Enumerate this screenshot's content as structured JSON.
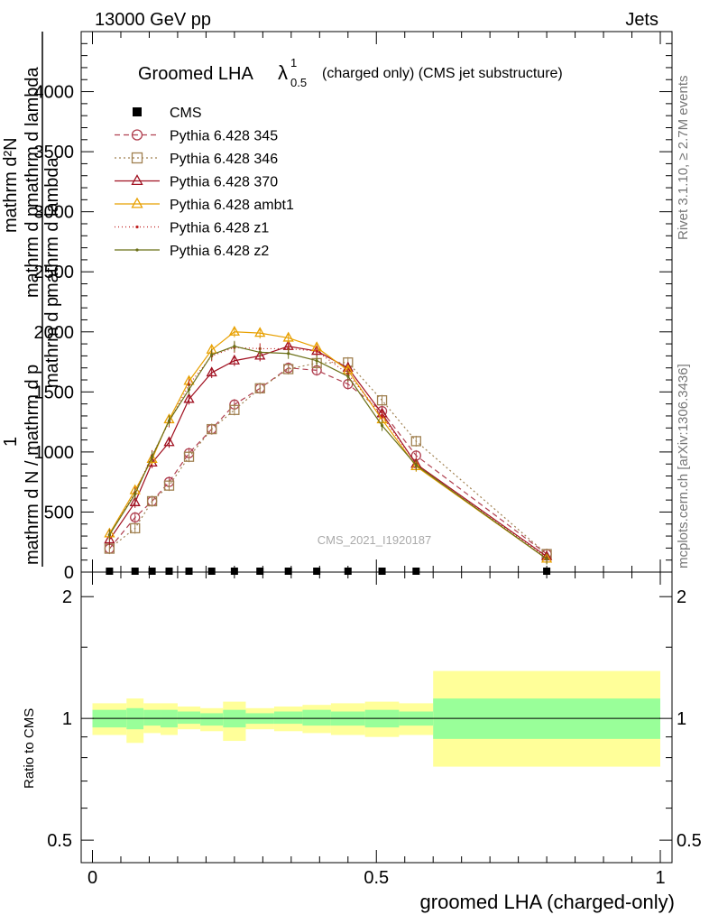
{
  "header": {
    "energy": "13000 GeV pp",
    "process": "Jets",
    "title_main": "Groomed LHA",
    "title_lambda": "λ",
    "title_super": "1",
    "title_sub": "0.5",
    "title_rest": "(charged only) (CMS jet substructure)",
    "side_top": "Rivet 3.1.10, ≥ 2.7M events",
    "side_bottom": "mcplots.cern.ch [arXiv:1306.3436]",
    "watermark": "CMS_2021_I1920187"
  },
  "upper_ylabel_lines": [
    "mathrm d²N",
    "mathrm d p_T mathrm d lambda",
    "1",
    "mathrm d N / mathrm d p_T mathrm d lambda"
  ],
  "upper_ylabel": {
    "num1": "mathrm d²N",
    "num2": "mathrm d p",
    "num3": "mathrm d lambda",
    "one": "1",
    "den": "mathrm d N / mathrm d p",
    "den2": "mathrm d p",
    "den3": "mathrm d lambda"
  },
  "lower_ylabel": "Ratio to CMS",
  "xlabel": "groomed LHA (charged-only)",
  "colors": {
    "cms": "#000000",
    "p345": "#b04050",
    "p346": "#a08050",
    "p370": "#a01020",
    "ambt1": "#e8a000",
    "z1": "#c02020",
    "z2": "#6b7018",
    "band_inner": "#99ff99",
    "band_outer": "#ffff99"
  },
  "chart_data": [
    {
      "type": "line",
      "panel": "main",
      "xlim": [
        -0.04,
        1.02
      ],
      "ylim": [
        0,
        4500
      ],
      "yticks": [
        0,
        500,
        1000,
        1500,
        2000,
        2500,
        3000,
        3500,
        4000
      ],
      "ytick_labels": [
        "0",
        "500",
        "1000",
        "1500",
        "2000",
        "2500",
        "3000",
        "3500",
        "4000"
      ],
      "x": [
        0.03,
        0.075,
        0.105,
        0.135,
        0.17,
        0.21,
        0.25,
        0.295,
        0.345,
        0.395,
        0.45,
        0.51,
        0.57,
        0.8
      ],
      "series": [
        {
          "name": "CMS",
          "style": "square",
          "values": [
            0,
            0,
            0,
            0,
            0,
            0,
            0,
            0,
            0,
            0,
            0,
            0,
            0,
            0
          ]
        },
        {
          "name": "Pythia 6.428 345",
          "style": "circle-dashed",
          "values": [
            195,
            455,
            590,
            750,
            990,
            1190,
            1395,
            1530,
            1700,
            1680,
            1565,
            1340,
            970,
            150
          ]
        },
        {
          "name": "Pythia 6.428 346",
          "style": "square-dotted",
          "values": [
            195,
            365,
            590,
            720,
            960,
            1190,
            1350,
            1530,
            1690,
            1740,
            1745,
            1430,
            1090,
            150
          ]
        },
        {
          "name": "Pythia 6.428 370",
          "style": "triangle-solid",
          "values": [
            270,
            580,
            910,
            1080,
            1440,
            1660,
            1760,
            1800,
            1880,
            1840,
            1700,
            1320,
            900,
            130
          ]
        },
        {
          "name": "Pythia 6.428 ambt1",
          "style": "triangle-solid",
          "values": [
            320,
            680,
            940,
            1270,
            1590,
            1850,
            2000,
            1990,
            1950,
            1870,
            1680,
            1270,
            880,
            110
          ]
        },
        {
          "name": "Pythia 6.428 z1",
          "style": "dot-dotted",
          "values": [
            310,
            660,
            970,
            1250,
            1560,
            1800,
            1870,
            1860,
            1860,
            1840,
            1650,
            1300,
            900,
            120
          ]
        },
        {
          "name": "Pythia 6.428 z2",
          "style": "dot-solid",
          "values": [
            310,
            650,
            960,
            1260,
            1520,
            1810,
            1880,
            1830,
            1820,
            1760,
            1630,
            1220,
            890,
            110
          ]
        }
      ]
    },
    {
      "type": "area",
      "panel": "ratio",
      "ylabel": "Ratio to CMS",
      "ylim": [
        0.44,
        2.3
      ],
      "log_y": true,
      "yticks": [
        0.5,
        1,
        2
      ],
      "ytick_labels": [
        "0.5",
        "1",
        "2"
      ],
      "xticks": [
        0,
        0.5,
        1
      ],
      "xtick_labels": [
        "0",
        "0.5",
        "1"
      ],
      "bins": [
        {
          "x": [
            0.0,
            0.06
          ],
          "inner": [
            0.95,
            1.05
          ],
          "outer": [
            0.91,
            1.09
          ]
        },
        {
          "x": [
            0.06,
            0.09
          ],
          "inner": [
            0.94,
            1.06
          ],
          "outer": [
            0.87,
            1.12
          ]
        },
        {
          "x": [
            0.09,
            0.12
          ],
          "inner": [
            0.96,
            1.05
          ],
          "outer": [
            0.92,
            1.09
          ]
        },
        {
          "x": [
            0.12,
            0.15
          ],
          "inner": [
            0.95,
            1.05
          ],
          "outer": [
            0.91,
            1.09
          ]
        },
        {
          "x": [
            0.15,
            0.19
          ],
          "inner": [
            0.97,
            1.04
          ],
          "outer": [
            0.94,
            1.07
          ]
        },
        {
          "x": [
            0.19,
            0.23
          ],
          "inner": [
            0.96,
            1.03
          ],
          "outer": [
            0.93,
            1.06
          ]
        },
        {
          "x": [
            0.23,
            0.27
          ],
          "inner": [
            0.95,
            1.05
          ],
          "outer": [
            0.88,
            1.1
          ]
        },
        {
          "x": [
            0.27,
            0.32
          ],
          "inner": [
            0.97,
            1.03
          ],
          "outer": [
            0.94,
            1.06
          ]
        },
        {
          "x": [
            0.32,
            0.37
          ],
          "inner": [
            0.97,
            1.04
          ],
          "outer": [
            0.93,
            1.07
          ]
        },
        {
          "x": [
            0.37,
            0.42
          ],
          "inner": [
            0.96,
            1.05
          ],
          "outer": [
            0.92,
            1.08
          ]
        },
        {
          "x": [
            0.42,
            0.48
          ],
          "inner": [
            0.96,
            1.04
          ],
          "outer": [
            0.91,
            1.09
          ]
        },
        {
          "x": [
            0.48,
            0.54
          ],
          "inner": [
            0.95,
            1.05
          ],
          "outer": [
            0.9,
            1.1
          ]
        },
        {
          "x": [
            0.54,
            0.6
          ],
          "inner": [
            0.96,
            1.04
          ],
          "outer": [
            0.91,
            1.09
          ]
        },
        {
          "x": [
            0.6,
            1.0
          ],
          "inner": [
            0.89,
            1.12
          ],
          "outer": [
            0.76,
            1.31
          ]
        }
      ]
    }
  ]
}
